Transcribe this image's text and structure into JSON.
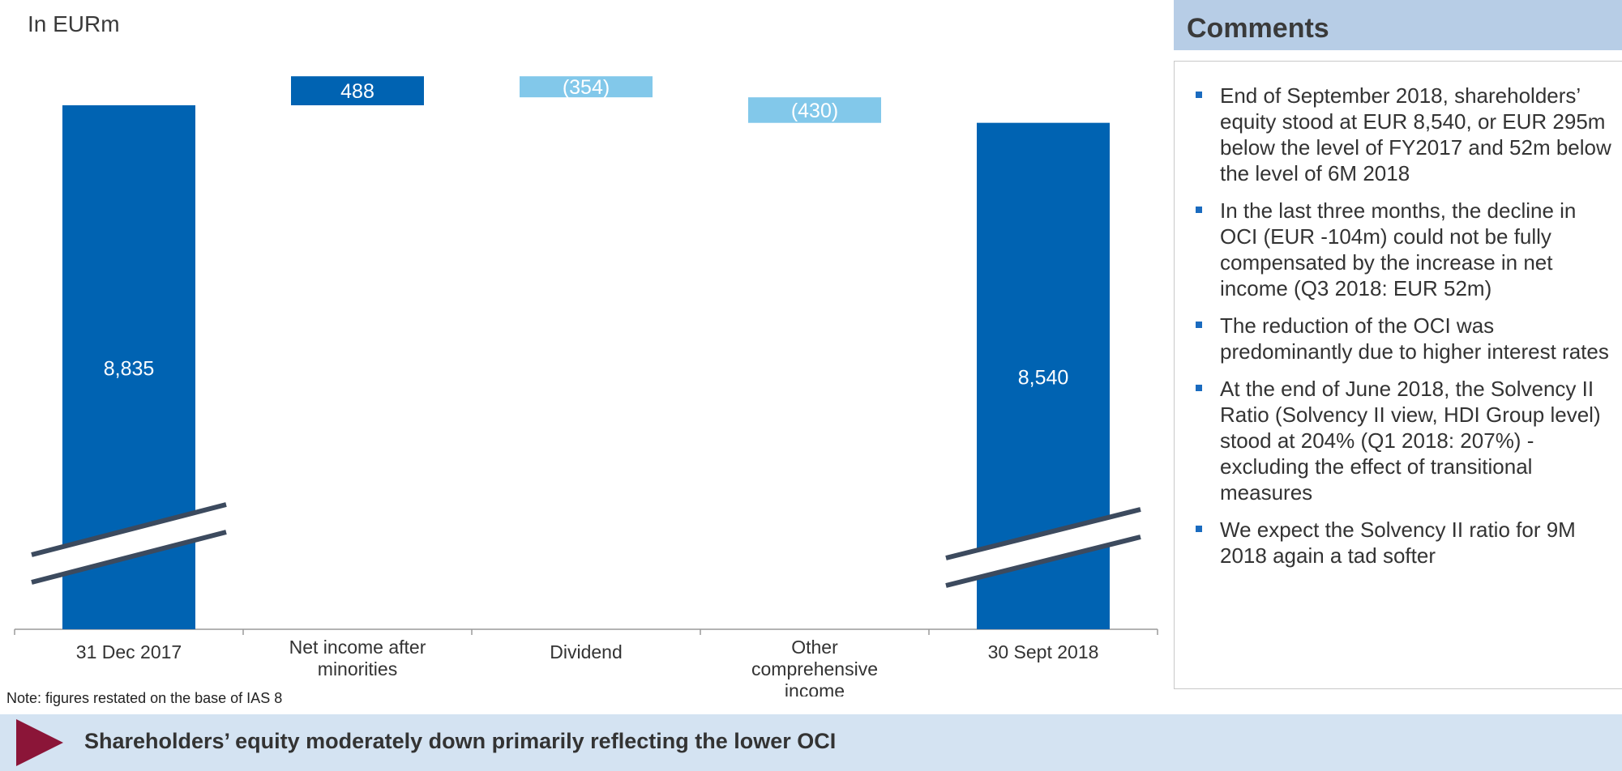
{
  "unit_label": "In EURm",
  "note": "Note: figures restated on the base of IAS 8",
  "comments": {
    "title": "Comments",
    "items": [
      "End of September 2018, shareholders’ equity stood at EUR 8,540, or EUR 295m below the level of FY2017 and 52m below the level of 6M 2018",
      "In the last three months, the decline in OCI (EUR -104m) could not be fully compensated by the increase in net income (Q3 2018: EUR 52m)",
      "The reduction of the OCI was predominantly due to higher interest rates",
      "At the end of June 2018, the Solvency II Ratio (Solvency II view, HDI Group level) stood at 204% (Q1 2018: 207%) - excluding the effect of transitional measures",
      "We expect the Solvency II ratio for 9M 2018 again a tad softer"
    ]
  },
  "takeaway": "Shareholders’ equity moderately down primarily reflecting the lower OCI",
  "chart_data": {
    "type": "bar",
    "subtype": "waterfall",
    "categories": [
      "31 Dec 2017",
      "Net income after minorities",
      "Dividend",
      "Other comprehensive income",
      "30 Sept 2018"
    ],
    "category_label_lines": [
      [
        "31 Dec 2017"
      ],
      [
        "Net income after",
        "minorities"
      ],
      [
        "Dividend"
      ],
      [
        "Other",
        "comprehensive",
        "income"
      ],
      [
        "30 Sept 2018"
      ]
    ],
    "values": [
      8835,
      488,
      -354,
      -430,
      8540
    ],
    "value_labels": [
      "8,835",
      "488",
      "(354)",
      "(430)",
      "8,540"
    ],
    "kinds": [
      "total",
      "delta",
      "delta",
      "delta",
      "total"
    ],
    "axis_break": true,
    "colors": {
      "total": "#0063b2",
      "increase": "#0063b2",
      "decrease": "#82c8ea"
    }
  }
}
